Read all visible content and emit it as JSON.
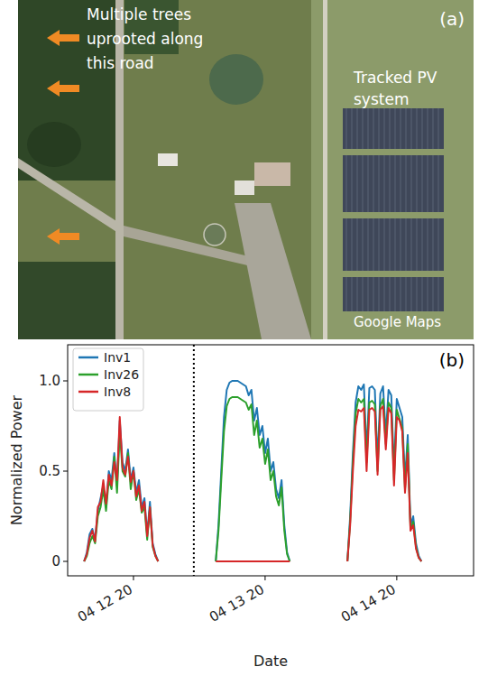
{
  "panel_a": {
    "label": "(a)",
    "annotation": "Multiple trees uprooted along this road",
    "system_label": "Tracked PV system",
    "credit": "Google Maps"
  },
  "chart_data": {
    "type": "line",
    "panel_label": "(b)",
    "x_label": "Date",
    "y_label": "Normalized Power",
    "x": [
      11,
      11.5,
      12,
      12.5,
      13,
      13.5,
      14,
      14.5,
      15,
      15.5,
      16,
      16.5,
      17,
      17.5,
      18,
      18.5,
      19,
      19.5,
      20,
      20.5,
      21,
      21.5,
      22,
      22.5,
      23,
      23.5,
      24,
      24.5,
      30,
      35,
      35.5,
      36,
      36.5,
      37,
      37.5,
      38,
      38.5,
      39,
      39.5,
      40,
      40.5,
      41,
      41.5,
      42,
      42.5,
      43,
      43.5,
      44,
      44.5,
      45,
      45.5,
      46,
      46.5,
      47,
      47.5,
      48,
      48.5,
      54,
      59,
      59.5,
      60,
      60.5,
      61,
      61.5,
      62,
      62.5,
      63,
      63.5,
      64,
      64.5,
      65,
      65.5,
      66,
      66.5,
      67,
      67.5,
      68,
      68.5,
      69,
      69.5,
      70,
      70.5,
      71,
      71.5,
      72,
      72.5
    ],
    "series": [
      {
        "name": "Inv1",
        "color": "#1f77b4",
        "values": [
          0,
          0.05,
          0.15,
          0.18,
          0.12,
          0.28,
          0.35,
          0.42,
          0.3,
          0.5,
          0.45,
          0.6,
          0.42,
          0.78,
          0.55,
          0.5,
          0.62,
          0.45,
          0.52,
          0.38,
          0.45,
          0.3,
          0.35,
          0.15,
          0.33,
          0.1,
          0.04,
          0,
          null,
          0,
          0.2,
          0.5,
          0.8,
          0.95,
          0.99,
          1.0,
          1.0,
          1.0,
          0.99,
          0.98,
          0.97,
          0.92,
          0.95,
          0.78,
          0.85,
          0.7,
          0.75,
          0.6,
          0.68,
          0.5,
          0.55,
          0.4,
          0.35,
          0.45,
          0.2,
          0.05,
          0,
          null,
          0,
          0.25,
          0.6,
          0.88,
          0.97,
          0.95,
          0.98,
          0.6,
          0.96,
          0.97,
          0.95,
          0.55,
          0.93,
          0.97,
          0.7,
          0.95,
          0.92,
          0.5,
          0.9,
          0.85,
          0.8,
          0.45,
          0.7,
          0.2,
          0.25,
          0.1,
          0.03,
          0
        ]
      },
      {
        "name": "Inv26",
        "color": "#2ca02c",
        "values": [
          0,
          0.03,
          0.1,
          0.14,
          0.1,
          0.25,
          0.3,
          0.4,
          0.28,
          0.45,
          0.4,
          0.58,
          0.38,
          0.72,
          0.5,
          0.47,
          0.6,
          0.4,
          0.5,
          0.34,
          0.4,
          0.27,
          0.3,
          0.12,
          0.3,
          0.08,
          0.03,
          0,
          null,
          0,
          0.17,
          0.45,
          0.72,
          0.86,
          0.9,
          0.91,
          0.91,
          0.91,
          0.9,
          0.89,
          0.88,
          0.84,
          0.87,
          0.7,
          0.78,
          0.63,
          0.68,
          0.54,
          0.62,
          0.45,
          0.5,
          0.36,
          0.31,
          0.41,
          0.17,
          0.04,
          0,
          null,
          0,
          0.22,
          0.55,
          0.82,
          0.9,
          0.88,
          0.9,
          0.55,
          0.88,
          0.89,
          0.87,
          0.5,
          0.86,
          0.9,
          0.65,
          0.88,
          0.85,
          0.45,
          0.84,
          0.79,
          0.74,
          0.4,
          0.65,
          0.18,
          0.22,
          0.08,
          0.02,
          0
        ]
      },
      {
        "name": "Inv8",
        "color": "#d62728",
        "values": [
          0,
          0.04,
          0.13,
          0.17,
          0.11,
          0.3,
          0.33,
          0.45,
          0.32,
          0.48,
          0.42,
          0.55,
          0.45,
          0.8,
          0.52,
          0.48,
          0.58,
          0.44,
          0.5,
          0.36,
          0.42,
          0.28,
          0.33,
          0.14,
          0.3,
          0.09,
          0.03,
          0,
          null,
          0,
          0,
          0,
          0,
          0,
          0,
          0,
          0,
          0,
          0,
          0,
          0,
          0,
          0,
          0,
          0,
          0,
          0,
          0,
          0,
          0,
          0,
          0,
          0,
          0,
          0,
          0,
          0,
          null,
          0,
          0.2,
          0.5,
          0.75,
          0.84,
          0.83,
          0.85,
          0.5,
          0.84,
          0.85,
          0.83,
          0.48,
          0.84,
          0.86,
          0.62,
          0.85,
          0.82,
          0.42,
          0.8,
          0.78,
          0.72,
          0.38,
          0.6,
          0.17,
          0.2,
          0.07,
          0.02,
          0
        ]
      }
    ],
    "vlines": [
      31
    ],
    "xlim": [
      8,
      82
    ],
    "xticks": [
      {
        "value": 20,
        "label": "04 12 20"
      },
      {
        "value": 44,
        "label": "04 13 20"
      },
      {
        "value": 68,
        "label": "04 14 20"
      }
    ],
    "ylim": [
      -0.08,
      1.2
    ],
    "yticks": [
      0,
      0.5,
      {
        "value": 1,
        "label": "1.0"
      }
    ],
    "grid": false,
    "legend": "upper left"
  }
}
